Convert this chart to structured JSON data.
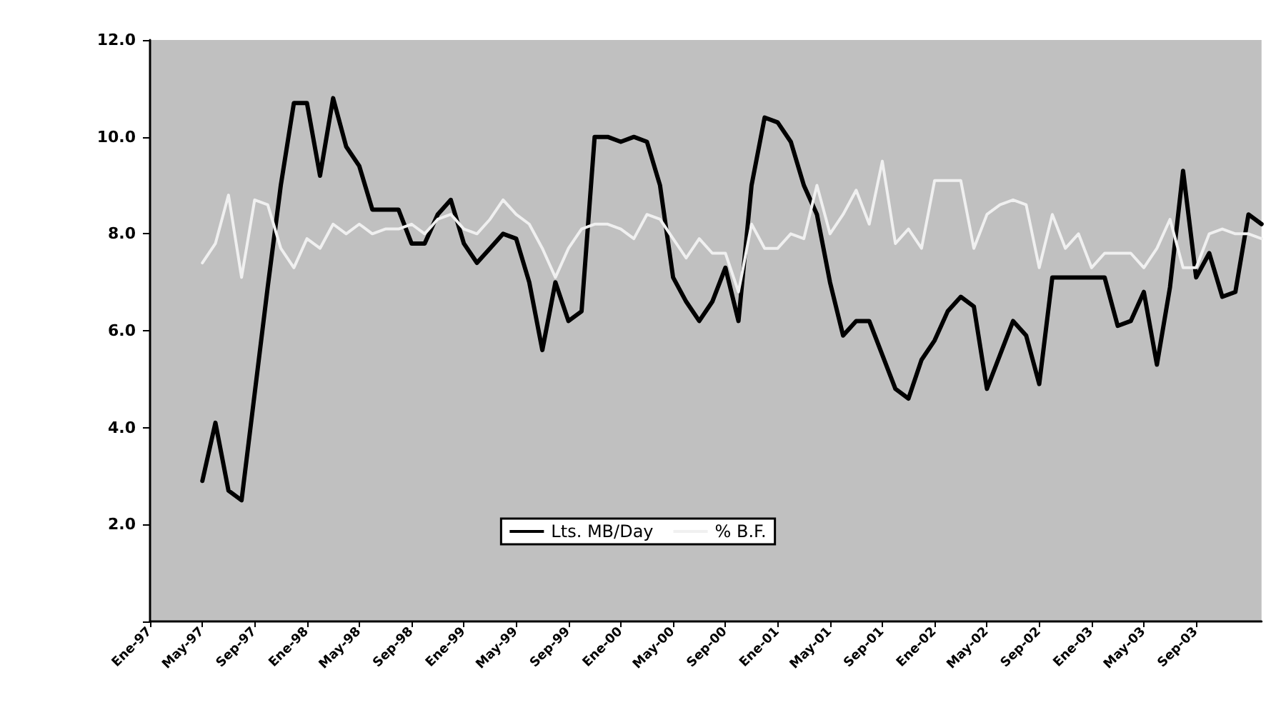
{
  "chart_data": {
    "type": "line",
    "categories": [
      "Ene-97",
      null,
      null,
      null,
      "May-97",
      null,
      null,
      null,
      "Sep-97",
      null,
      null,
      null,
      "Ene-98",
      null,
      null,
      null,
      "May-98",
      null,
      null,
      null,
      "Sep-98",
      null,
      null,
      null,
      "Ene-99",
      null,
      null,
      null,
      "May-99",
      null,
      null,
      null,
      "Sep-99",
      null,
      null,
      null,
      "Ene-00",
      null,
      null,
      null,
      "May-00",
      null,
      null,
      null,
      "Sep-00",
      null,
      null,
      null,
      "Ene-01",
      null,
      null,
      null,
      "May-01",
      null,
      null,
      null,
      "Sep-01",
      null,
      null,
      null,
      "Ene-02",
      null,
      null,
      null,
      "May-02",
      null,
      null,
      null,
      "Sep-02",
      null,
      null,
      null,
      "Ene-03",
      null,
      null,
      null,
      "May-03",
      null,
      null,
      null,
      "Sep-03",
      null,
      null,
      null,
      null,
      null
    ],
    "series": [
      {
        "name": "Lts. MB/Day",
        "color": "#000000",
        "values": [
          null,
          null,
          null,
          null,
          2.9,
          4.1,
          2.7,
          2.5,
          4.7,
          6.9,
          9.0,
          10.7,
          10.7,
          9.2,
          10.8,
          9.8,
          9.4,
          8.5,
          8.5,
          8.5,
          7.8,
          7.8,
          8.4,
          8.7,
          7.8,
          7.4,
          7.7,
          8.0,
          7.9,
          7.0,
          5.6,
          7.0,
          6.2,
          6.4,
          10.0,
          10.0,
          9.9,
          10.0,
          9.9,
          9.0,
          7.1,
          6.6,
          6.2,
          6.6,
          7.3,
          6.2,
          9.0,
          10.4,
          10.3,
          9.9,
          9.0,
          8.4,
          7.0,
          5.9,
          6.2,
          6.2,
          5.5,
          4.8,
          4.6,
          5.4,
          5.8,
          6.4,
          6.7,
          6.5,
          4.8,
          5.5,
          6.2,
          5.9,
          4.9,
          7.1,
          7.1,
          7.1,
          7.1,
          7.1,
          6.1,
          6.2,
          6.8,
          5.3,
          6.9,
          9.3,
          7.1,
          7.6,
          6.7,
          6.8,
          8.4,
          8.2
        ]
      },
      {
        "name": "% B.F.",
        "color": "#f0f0f0",
        "values": [
          null,
          null,
          null,
          null,
          7.4,
          7.8,
          8.8,
          7.1,
          8.7,
          8.6,
          7.7,
          7.3,
          7.9,
          7.7,
          8.2,
          8.0,
          8.2,
          8.0,
          8.1,
          8.1,
          8.2,
          8.0,
          8.3,
          8.4,
          8.1,
          8.0,
          8.3,
          8.7,
          8.4,
          8.2,
          7.7,
          7.1,
          7.7,
          8.1,
          8.2,
          8.2,
          8.1,
          7.9,
          8.4,
          8.3,
          7.9,
          7.5,
          7.9,
          7.6,
          7.6,
          6.8,
          8.2,
          7.7,
          7.7,
          8.0,
          7.9,
          9.0,
          8.0,
          8.4,
          8.9,
          8.2,
          9.5,
          7.8,
          8.1,
          7.7,
          9.1,
          9.1,
          9.1,
          7.7,
          8.4,
          8.6,
          8.7,
          8.6,
          7.3,
          8.4,
          7.7,
          8.0,
          7.3,
          7.6,
          7.6,
          7.6,
          7.3,
          7.7,
          8.3,
          7.3,
          7.3,
          8.0,
          8.1,
          8.0,
          8.0,
          7.9
        ]
      }
    ],
    "ylim": [
      0,
      12
    ],
    "yticks": [
      {
        "value": 0,
        "label": null
      },
      {
        "value": 2,
        "label": "2.0"
      },
      {
        "value": 4,
        "label": "4.0"
      },
      {
        "value": 6,
        "label": "6.0"
      },
      {
        "value": 8,
        "label": "8.0"
      },
      {
        "value": 10,
        "label": "10.0"
      },
      {
        "value": 12,
        "label": "12.0"
      }
    ],
    "legend": "bottom",
    "marker": "none",
    "line_style": "solid"
  }
}
